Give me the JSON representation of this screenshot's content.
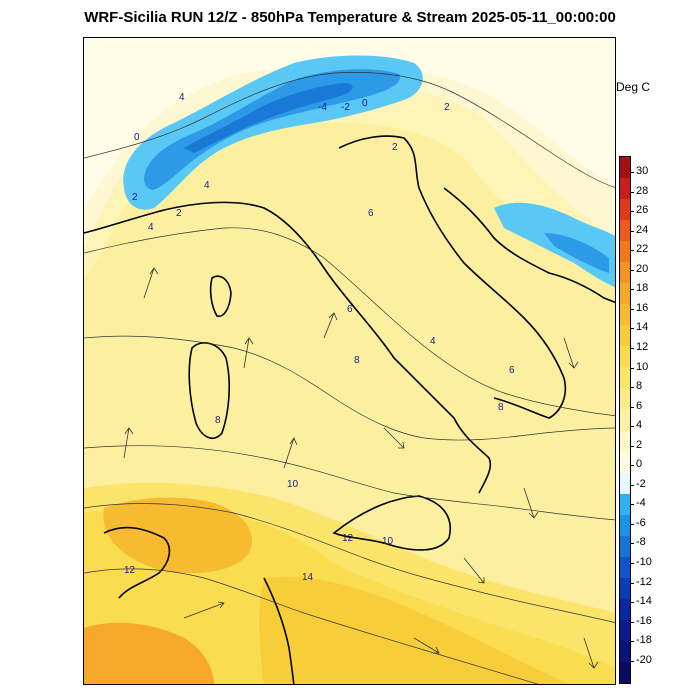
{
  "header": {
    "title": "WRF-Sicilia RUN 12/Z - 850hPa Temperature & Stream 2025-05-11_00:00:00"
  },
  "colorbar": {
    "units": "Deg C",
    "ticks": [
      "30",
      "28",
      "26",
      "24",
      "22",
      "20",
      "18",
      "16",
      "14",
      "12",
      "10",
      "8",
      "6",
      "4",
      "2",
      "0",
      "-2",
      "-4",
      "-6",
      "-8",
      "-10",
      "-12",
      "-14",
      "-16",
      "-18",
      "-20"
    ],
    "colors": [
      "#a50f15",
      "#c81e1e",
      "#e03a1e",
      "#ee5a1e",
      "#f2781e",
      "#f39424",
      "#f5a829",
      "#f6bb30",
      "#f8cd3a",
      "#fadc50",
      "#fbe46a",
      "#fcec88",
      "#fdf2a6",
      "#fef7c6",
      "#fffbe2",
      "#e8f7ff",
      "#2fb3f0",
      "#1b93e6",
      "#1474d8",
      "#0f56c8",
      "#0b3cb8",
      "#0a27a4",
      "#0b1a8e",
      "#0b1278",
      "#0a0b62"
    ]
  },
  "map_labels": [
    {
      "name": "contour-label-4-alps",
      "text": "4"
    },
    {
      "name": "contour-label-0-alps",
      "text": "0"
    },
    {
      "name": "contour-label-neg4-alps",
      "text": "-4"
    },
    {
      "name": "contour-label-neg2-alps",
      "text": "-2"
    },
    {
      "name": "contour-label-0-alps-east",
      "text": "0"
    },
    {
      "name": "contour-label-2-east",
      "text": "2"
    },
    {
      "name": "contour-label-2-west",
      "text": "2"
    },
    {
      "name": "contour-label-4-west",
      "text": "4"
    },
    {
      "name": "contour-label-4-liguria",
      "text": "4"
    },
    {
      "name": "contour-label-2-liguria",
      "text": "2"
    },
    {
      "name": "contour-label-2-adriatic",
      "text": "2"
    },
    {
      "name": "contour-label-6-apennines",
      "text": "6"
    },
    {
      "name": "contour-label-6-central",
      "text": "6"
    },
    {
      "name": "contour-label-4-central",
      "text": "4"
    },
    {
      "name": "contour-label-8-campania",
      "text": "8"
    },
    {
      "name": "contour-label-6-apulia",
      "text": "6"
    },
    {
      "name": "contour-label-8-calabria",
      "text": "8"
    },
    {
      "name": "contour-label-8-sardinia",
      "text": "8"
    },
    {
      "name": "contour-label-10-tyrrhenian",
      "text": "10"
    },
    {
      "name": "contour-label-12-sicily",
      "text": "12"
    },
    {
      "name": "contour-label-10-sicily",
      "text": "10"
    },
    {
      "name": "contour-label-12-tunisia",
      "text": "12"
    },
    {
      "name": "contour-label-14-south",
      "text": "14"
    }
  ]
}
